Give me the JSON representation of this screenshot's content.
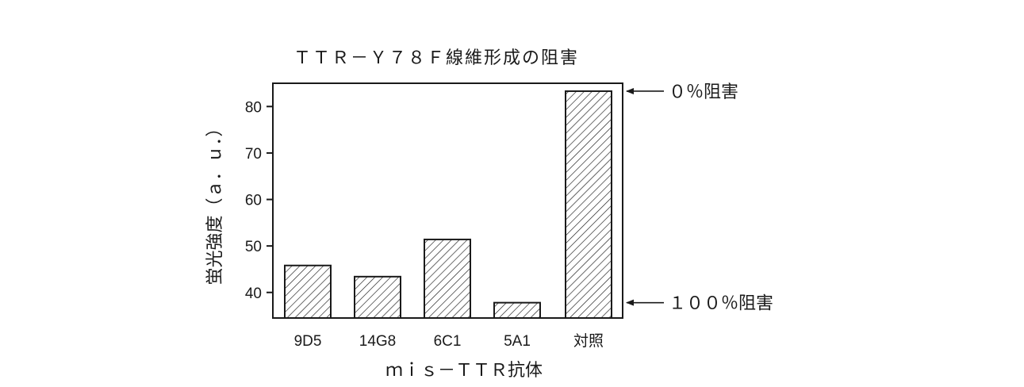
{
  "chart_data": {
    "type": "bar",
    "title": "ＴＴＲ－Ｙ７８Ｆ線維形成の阻害",
    "xlabel": "ｍｉｓ－ＴＴＲ抗体",
    "ylabel": "蛍光強度（ａ．ｕ．）",
    "categories": [
      "9D5",
      "14G8",
      "6C1",
      "5A1",
      "対照"
    ],
    "values": [
      45.8,
      43.4,
      51.4,
      37.8,
      83.3
    ],
    "ylim": [
      34.5,
      85
    ],
    "yticks": [
      40,
      50,
      60,
      70,
      80
    ],
    "bar_fill": "diagonal-hatch",
    "grid": false,
    "annotations": [
      {
        "label": "０％阻害",
        "y": 83.3
      },
      {
        "label": "１００％阻害",
        "y": 37.8
      }
    ]
  },
  "colors": {
    "ink": "#1a1a1a",
    "background": "#ffffff"
  }
}
